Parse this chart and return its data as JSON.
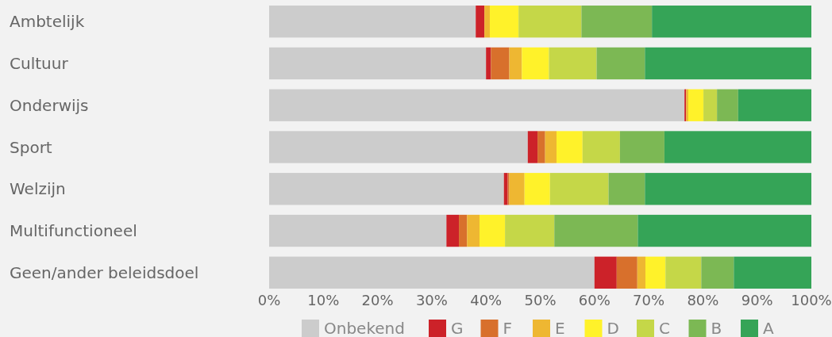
{
  "chart_data": {
    "type": "bar",
    "orientation": "horizontal",
    "stacked": true,
    "categories": [
      "Ambtelijk",
      "Cultuur",
      "Onderwijs",
      "Sport",
      "Welzijn",
      "Multifunctioneel",
      "Geen/ander beleidsdoel"
    ],
    "series": [
      {
        "name": "Onbekend",
        "color": "#cccccc",
        "values": [
          38.1,
          40.0,
          76.6,
          47.7,
          43.3,
          32.7,
          60.0
        ]
      },
      {
        "name": "G",
        "color": "#cc2229",
        "values": [
          1.6,
          0.9,
          0.3,
          1.8,
          0.7,
          2.3,
          4.1
        ]
      },
      {
        "name": "F",
        "color": "#d8702c",
        "values": [
          0,
          3.4,
          0,
          1.4,
          0.3,
          1.5,
          3.8
        ]
      },
      {
        "name": "E",
        "color": "#eeb732",
        "values": [
          1.0,
          2.3,
          0.4,
          2.1,
          2.8,
          2.3,
          1.5
        ]
      },
      {
        "name": "D",
        "color": "#fff22a",
        "values": [
          5.3,
          5.0,
          2.8,
          4.8,
          4.7,
          4.7,
          3.7
        ]
      },
      {
        "name": "C",
        "color": "#c5d748",
        "values": [
          11.6,
          8.8,
          2.5,
          6.9,
          10.8,
          9.1,
          6.6
        ]
      },
      {
        "name": "B",
        "color": "#7cb854",
        "values": [
          13.0,
          8.9,
          3.9,
          8.2,
          6.7,
          15.4,
          6.0
        ]
      },
      {
        "name": "A",
        "color": "#35a457",
        "values": [
          29.4,
          30.7,
          13.5,
          27.1,
          30.7,
          32.0,
          14.3
        ]
      }
    ],
    "xlim": [
      0,
      100
    ],
    "xticks": [
      {
        "value": 0,
        "label": "0%"
      },
      {
        "value": 10,
        "label": "10%"
      },
      {
        "value": 20,
        "label": "20%"
      },
      {
        "value": 30,
        "label": "30%"
      },
      {
        "value": 40,
        "label": "40%"
      },
      {
        "value": 50,
        "label": "50%"
      },
      {
        "value": 60,
        "label": "60%"
      },
      {
        "value": 70,
        "label": "70%"
      },
      {
        "value": 80,
        "label": "80%"
      },
      {
        "value": 90,
        "label": "90%"
      },
      {
        "value": 100,
        "label": "100%"
      }
    ],
    "legend": "bottom",
    "grid": false
  }
}
